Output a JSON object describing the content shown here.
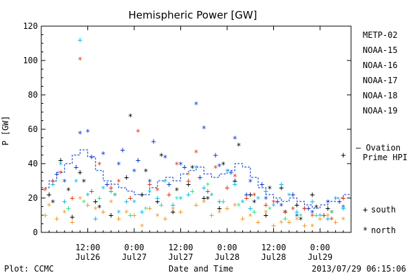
{
  "footer": {
    "plot_by": "Plot: CCMC",
    "timestamp": "2013/07/29 06:15:06"
  },
  "chart_data": {
    "type": "scatter",
    "title": "Hemispheric Power [GW]",
    "xlabel": "Date and Time",
    "ylabel": "P [GW]",
    "ylim": [
      0,
      120
    ],
    "yticks": [
      0,
      20,
      40,
      60,
      80,
      100,
      120
    ],
    "xlim_hours": [
      0,
      80
    ],
    "xticks": [
      {
        "t": 12,
        "line1": "12:00",
        "line2": "Jul26"
      },
      {
        "t": 24,
        "line1": "0:00",
        "line2": "Jul27"
      },
      {
        "t": 36,
        "line1": "12:00",
        "line2": "Jul27"
      },
      {
        "t": 48,
        "line1": "0:00",
        "line2": "Jul28"
      },
      {
        "t": 60,
        "line1": "12:00",
        "line2": "Jul28"
      },
      {
        "t": 72,
        "line1": "0:00",
        "line2": "Jul29"
      }
    ],
    "legend_placement": "right",
    "legend_header": "METP-02",
    "series": [
      {
        "name": "METP-02",
        "color": "#000000",
        "south": [
          [
            2,
            22
          ],
          [
            5,
            42
          ],
          [
            8,
            9
          ],
          [
            10,
            35
          ],
          [
            14,
            18
          ],
          [
            18,
            10
          ],
          [
            22,
            32
          ],
          [
            26,
            22
          ],
          [
            30,
            18
          ],
          [
            34,
            12
          ],
          [
            38,
            28
          ],
          [
            42,
            20
          ],
          [
            46,
            14
          ],
          [
            50,
            30
          ],
          [
            54,
            22
          ],
          [
            58,
            10
          ],
          [
            62,
            26
          ],
          [
            66,
            16
          ],
          [
            70,
            22
          ],
          [
            74,
            14
          ],
          [
            78,
            45
          ]
        ],
        "north": [
          [
            3,
            18
          ],
          [
            7,
            25
          ],
          [
            11,
            30
          ],
          [
            15,
            15
          ],
          [
            19,
            22
          ],
          [
            23,
            68
          ],
          [
            27,
            36
          ],
          [
            31,
            45
          ],
          [
            35,
            25
          ],
          [
            39,
            38
          ],
          [
            43,
            20
          ],
          [
            47,
            40
          ],
          [
            51,
            51
          ],
          [
            55,
            18
          ],
          [
            59,
            26
          ],
          [
            63,
            12
          ],
          [
            67,
            8
          ],
          [
            71,
            15
          ],
          [
            75,
            12
          ]
        ]
      },
      {
        "name": "NOAA-15",
        "color": "#0033cc",
        "south": [
          [
            4,
            34
          ],
          [
            9,
            38
          ],
          [
            13,
            44
          ],
          [
            17,
            28
          ],
          [
            21,
            48
          ],
          [
            25,
            42
          ],
          [
            29,
            53
          ],
          [
            33,
            28
          ],
          [
            37,
            38
          ],
          [
            41,
            32
          ],
          [
            45,
            45
          ],
          [
            49,
            35
          ],
          [
            53,
            22
          ],
          [
            57,
            28
          ],
          [
            61,
            18
          ],
          [
            65,
            22
          ],
          [
            69,
            14
          ],
          [
            73,
            10
          ],
          [
            77,
            18
          ]
        ],
        "north": [
          [
            6,
            30
          ],
          [
            10,
            58
          ],
          [
            12,
            59
          ],
          [
            16,
            46
          ],
          [
            20,
            40
          ],
          [
            24,
            36
          ],
          [
            28,
            30
          ],
          [
            32,
            44
          ],
          [
            36,
            40
          ],
          [
            40,
            75
          ],
          [
            42,
            61
          ],
          [
            46,
            39
          ],
          [
            50,
            55
          ],
          [
            54,
            30
          ],
          [
            58,
            20
          ],
          [
            62,
            16
          ],
          [
            66,
            10
          ],
          [
            70,
            12
          ],
          [
            74,
            18
          ],
          [
            78,
            15
          ]
        ]
      },
      {
        "name": "NOAA-16",
        "color": "#00bbee",
        "south": [
          [
            3,
            28
          ],
          [
            6,
            18
          ],
          [
            10,
            112
          ],
          [
            14,
            8
          ],
          [
            18,
            24
          ],
          [
            22,
            18
          ],
          [
            26,
            12
          ],
          [
            30,
            20
          ],
          [
            34,
            16
          ],
          [
            38,
            22
          ],
          [
            42,
            26
          ],
          [
            46,
            18
          ],
          [
            50,
            28
          ],
          [
            54,
            14
          ],
          [
            58,
            24
          ],
          [
            62,
            28
          ],
          [
            66,
            12
          ],
          [
            70,
            18
          ],
          [
            74,
            8
          ],
          [
            78,
            14
          ]
        ],
        "north": [
          [
            5,
            40
          ],
          [
            9,
            30
          ],
          [
            12,
            22
          ],
          [
            16,
            26
          ],
          [
            20,
            12
          ],
          [
            24,
            18
          ],
          [
            28,
            24
          ],
          [
            32,
            30
          ],
          [
            36,
            20
          ],
          [
            40,
            38
          ],
          [
            44,
            22
          ],
          [
            48,
            36
          ],
          [
            52,
            18
          ],
          [
            56,
            20
          ],
          [
            60,
            16
          ],
          [
            64,
            22
          ],
          [
            68,
            14
          ],
          [
            72,
            10
          ],
          [
            76,
            20
          ]
        ]
      },
      {
        "name": "NOAA-17",
        "color": "#33dd88",
        "south": [
          [
            7,
            14
          ],
          [
            15,
            20
          ],
          [
            23,
            10
          ],
          [
            31,
            16
          ],
          [
            39,
            24
          ],
          [
            47,
            18
          ],
          [
            55,
            12
          ],
          [
            63,
            8
          ],
          [
            71,
            10
          ]
        ],
        "north": [
          [
            11,
            18
          ],
          [
            19,
            22
          ],
          [
            27,
            14
          ],
          [
            35,
            20
          ],
          [
            43,
            28
          ],
          [
            51,
            16
          ],
          [
            59,
            14
          ],
          [
            67,
            10
          ],
          [
            75,
            12
          ]
        ]
      },
      {
        "name": "NOAA-18",
        "color": "#ee9922",
        "south": [
          [
            1,
            10
          ],
          [
            4,
            8
          ],
          [
            8,
            6
          ],
          [
            12,
            16
          ],
          [
            16,
            12
          ],
          [
            20,
            8
          ],
          [
            24,
            10
          ],
          [
            28,
            14
          ],
          [
            32,
            8
          ],
          [
            36,
            12
          ],
          [
            40,
            16
          ],
          [
            44,
            10
          ],
          [
            48,
            14
          ],
          [
            52,
            8
          ],
          [
            56,
            6
          ],
          [
            60,
            4
          ],
          [
            64,
            6
          ],
          [
            68,
            4
          ],
          [
            72,
            8
          ],
          [
            76,
            6
          ]
        ],
        "north": [
          [
            2,
            16
          ],
          [
            6,
            12
          ],
          [
            10,
            20
          ],
          [
            14,
            14
          ],
          [
            18,
            18
          ],
          [
            22,
            12
          ],
          [
            26,
            4
          ],
          [
            30,
            10
          ],
          [
            34,
            14
          ],
          [
            38,
            34
          ],
          [
            42,
            18
          ],
          [
            46,
            12
          ],
          [
            50,
            16
          ],
          [
            54,
            10
          ],
          [
            58,
            12
          ],
          [
            62,
            6
          ],
          [
            66,
            8
          ],
          [
            70,
            4
          ],
          [
            74,
            10
          ],
          [
            78,
            8
          ]
        ]
      },
      {
        "name": "NOAA-19",
        "color": "#dd3311",
        "south": [
          [
            3,
            30
          ],
          [
            8,
            20
          ],
          [
            13,
            24
          ],
          [
            18,
            26
          ],
          [
            23,
            20
          ],
          [
            28,
            28
          ],
          [
            33,
            22
          ],
          [
            38,
            30
          ],
          [
            43,
            24
          ],
          [
            48,
            26
          ],
          [
            53,
            20
          ],
          [
            58,
            16
          ],
          [
            63,
            12
          ],
          [
            68,
            14
          ],
          [
            73,
            10
          ],
          [
            78,
            20
          ]
        ],
        "north": [
          [
            1,
            25
          ],
          [
            5,
            35
          ],
          [
            10,
            101
          ],
          [
            15,
            40
          ],
          [
            20,
            30
          ],
          [
            25,
            59
          ],
          [
            30,
            25
          ],
          [
            35,
            40
          ],
          [
            40,
            47
          ],
          [
            45,
            38
          ],
          [
            50,
            33
          ],
          [
            55,
            22
          ],
          [
            60,
            18
          ],
          [
            65,
            14
          ],
          [
            70,
            10
          ],
          [
            75,
            8
          ]
        ]
      }
    ],
    "ovation": {
      "name": "- Ovation Prime HPI",
      "line1": "— Ovation",
      "line2": "Prime HPI",
      "color": "#0033cc",
      "values": [
        [
          0,
          26
        ],
        [
          2,
          30
        ],
        [
          4,
          35
        ],
        [
          6,
          40
        ],
        [
          8,
          45
        ],
        [
          10,
          48
        ],
        [
          12,
          44
        ],
        [
          14,
          36
        ],
        [
          16,
          30
        ],
        [
          18,
          28
        ],
        [
          20,
          26
        ],
        [
          22,
          24
        ],
        [
          24,
          22
        ],
        [
          26,
          22
        ],
        [
          28,
          26
        ],
        [
          30,
          30
        ],
        [
          32,
          32
        ],
        [
          34,
          30
        ],
        [
          36,
          34
        ],
        [
          38,
          36
        ],
        [
          40,
          38
        ],
        [
          42,
          34
        ],
        [
          44,
          32
        ],
        [
          46,
          34
        ],
        [
          48,
          36
        ],
        [
          50,
          40
        ],
        [
          52,
          38
        ],
        [
          54,
          32
        ],
        [
          56,
          26
        ],
        [
          58,
          22
        ],
        [
          60,
          20
        ],
        [
          62,
          18
        ],
        [
          64,
          20
        ],
        [
          66,
          18
        ],
        [
          68,
          16
        ],
        [
          70,
          14
        ],
        [
          72,
          16
        ],
        [
          74,
          18
        ],
        [
          76,
          20
        ],
        [
          78,
          22
        ],
        [
          80,
          22
        ]
      ]
    },
    "marker_legend": [
      {
        "symbol": "+",
        "label": "south"
      },
      {
        "symbol": "*",
        "label": "north"
      }
    ]
  }
}
